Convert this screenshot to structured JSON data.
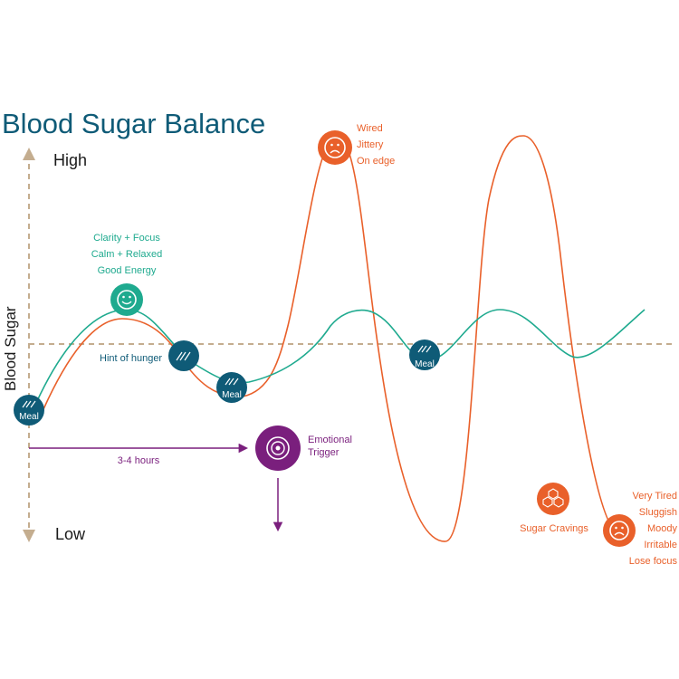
{
  "title": "Blood Sugar Balance",
  "axis": {
    "y_label": "Blood Sugar",
    "high_label": "High",
    "low_label": "Low"
  },
  "colors": {
    "title": "#0f5b77",
    "teal": "#1faa8f",
    "orange": "#e9602a",
    "navy": "#0f5b77",
    "purple": "#7a1f7d",
    "axis": "#c4ad8f"
  },
  "icons": {
    "meal": "fork-knife-icon",
    "happy": "smiley-face-icon",
    "sad": "frowning-face-icon",
    "trigger": "target-icon",
    "cravings": "sugar-cubes-icon"
  },
  "annotations": {
    "good": [
      "Clarity + Focus",
      "Calm + Relaxed",
      "Good Energy"
    ],
    "hunger": "Hint of hunger",
    "wired": [
      "Wired",
      "Jittery",
      "On edge"
    ],
    "trigger": [
      "Emotional",
      "Trigger"
    ],
    "duration": "3-4 hours",
    "cravings": "Sugar Cravings",
    "tired": [
      "Very Tired",
      "Sluggish",
      "Moody",
      "Irritable",
      "Lose focus"
    ],
    "meal": "Meal"
  }
}
